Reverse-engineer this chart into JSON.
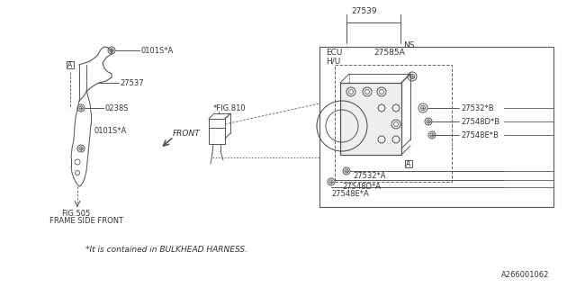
{
  "background_color": "#ffffff",
  "line_color": "#555555",
  "text_color": "#333333",
  "fig_number": "A266001062",
  "footnote": "*It is contained in BULKHEAD HARNESS.",
  "labels": {
    "part_number_top": "27539",
    "ns": "NS",
    "ecu": "ECU",
    "hu": "H/U",
    "27585A": "27585A",
    "27532B": "27532*B",
    "27548DB": "27548D*B",
    "27548EB": "27548E*B",
    "27532A": "27532*A",
    "27548DA": "27548D*A",
    "27548EA": "27548E*A",
    "fig810": "*FIG.810",
    "0101SA_top": "0101S*A",
    "27537": "27537",
    "0238S": "0238S",
    "0101SA_bot": "0101S*A",
    "front": "FRONT",
    "fig505": "FIG.505",
    "frame_side": "FRAME SIDE FRONT",
    "callout_A": "A"
  }
}
